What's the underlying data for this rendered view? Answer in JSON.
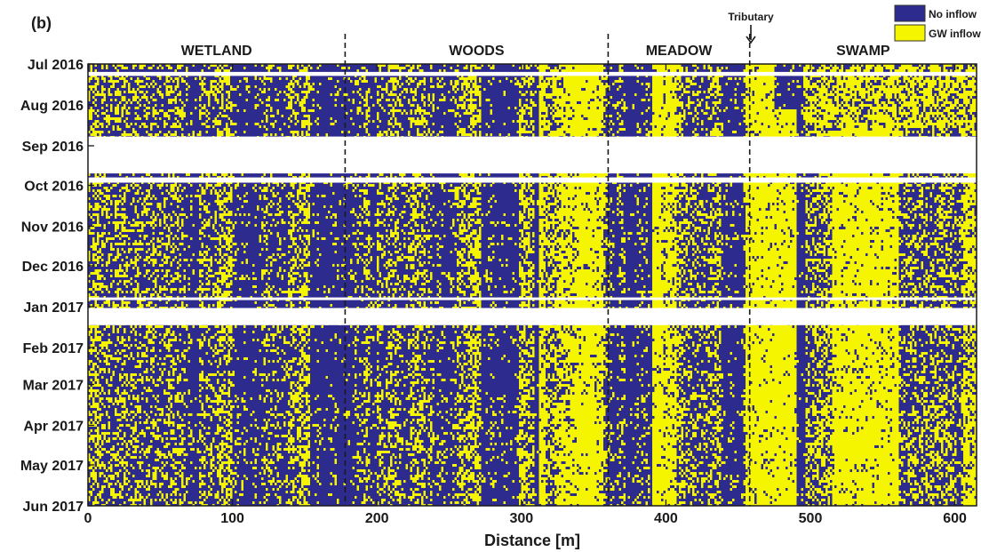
{
  "panel_label": "(b)",
  "colors": {
    "no_inflow": "#2e2b8f",
    "gw_inflow": "#f5f500",
    "axis": "#1a1a1a"
  },
  "chart_data": {
    "type": "heatmap",
    "xlabel": "Distance [m]",
    "xlim": [
      0,
      615
    ],
    "x_ticks": [
      0,
      100,
      200,
      300,
      400,
      500,
      600
    ],
    "y_ticks": [
      "Jul 2016",
      "Aug 2016",
      "Sep 2016",
      "Oct 2016",
      "Nov 2016",
      "Dec 2016",
      "Jan 2017",
      "Feb 2017",
      "Mar 2017",
      "Apr 2017",
      "May 2017",
      "Jun 2017"
    ],
    "categories": [
      "No inflow",
      "GW inflow"
    ],
    "legend_position": "top-right",
    "regions": [
      {
        "name": "WETLAND",
        "start": 0,
        "end": 178
      },
      {
        "name": "WOODS",
        "start": 178,
        "end": 360
      },
      {
        "name": "MEADOW",
        "start": 360,
        "end": 458
      },
      {
        "name": "SWAMP",
        "start": 458,
        "end": 615
      }
    ],
    "boundaries": [
      178,
      360,
      458
    ],
    "tributary": {
      "label": "Tributary",
      "x": 458
    },
    "data_gaps": [
      {
        "from": "2016-07-07",
        "to": "2016-07-10"
      },
      {
        "from": "2016-08-25",
        "to": "2016-09-22"
      },
      {
        "from": "2016-09-25",
        "to": "2016-09-29"
      },
      {
        "from": "2016-12-25",
        "to": "2016-12-27"
      },
      {
        "from": "2017-01-02",
        "to": "2017-01-15"
      }
    ]
  }
}
